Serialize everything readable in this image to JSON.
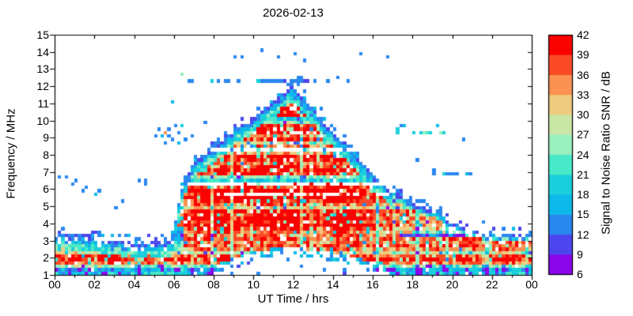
{
  "title": "2026-02-13",
  "axes": {
    "x_label": "UT Time / hrs",
    "y_label": "Frequency / MHz",
    "x_ticks": [
      "00",
      "02",
      "04",
      "06",
      "08",
      "10",
      "12",
      "14",
      "16",
      "18",
      "20",
      "22",
      "00"
    ],
    "x_tick_hours": [
      0,
      2,
      4,
      6,
      8,
      10,
      12,
      14,
      16,
      18,
      20,
      22,
      24
    ],
    "y_ticks": [
      15,
      14,
      13,
      12,
      11,
      10,
      9,
      8,
      7,
      6,
      5,
      4,
      3,
      2,
      1
    ]
  },
  "colorbar": {
    "label": "Signal to Noise Ratio SNR / dB",
    "tick_values": [
      6,
      9,
      12,
      15,
      18,
      21,
      24,
      27,
      30,
      33,
      36,
      39,
      42
    ],
    "colors_bottom_to_top": [
      "#8a06e9",
      "#4d46ee",
      "#2a87f0",
      "#0cb9e8",
      "#1acfdb",
      "#48e9c8",
      "#97f0be",
      "#c8e7a6",
      "#efcb7f",
      "#fb9251",
      "#fb4b26",
      "#fa0200"
    ]
  },
  "chart_data": {
    "type": "heatmap",
    "title": "2026-02-13",
    "xlabel": "UT Time / hrs",
    "ylabel": "Frequency / MHz",
    "zlabel": "Signal to Noise Ratio SNR / dB",
    "x_range": [
      0,
      24
    ],
    "y_range": [
      1,
      15
    ],
    "z_range": [
      6,
      42
    ],
    "z_step": 3,
    "grid": {
      "nt": 144,
      "nf": 70
    },
    "seed": 20260213,
    "envelope_foF2_MHz": {
      "hours": [
        0,
        1,
        2,
        3,
        4,
        4.8,
        5.4,
        5.9,
        6.1,
        6.5,
        7,
        7.5,
        8,
        9,
        10,
        10.8,
        11.3,
        11.8,
        12.2,
        12.7,
        13,
        13.5,
        14,
        14.5,
        15,
        16,
        17,
        18,
        19,
        20,
        21,
        22,
        23,
        24
      ],
      "mhz": [
        3.35,
        3.3,
        3.2,
        3.05,
        2.95,
        2.9,
        2.8,
        2.95,
        4.2,
        6.3,
        7.3,
        7.9,
        8.5,
        9.6,
        10.5,
        11.1,
        11.5,
        11.9,
        11.5,
        11.0,
        10.5,
        9.9,
        9.3,
        8.7,
        8.0,
        6.9,
        5.8,
        5.0,
        4.3,
        3.85,
        3.55,
        3.4,
        3.3,
        3.3
      ]
    },
    "absorption_fmin_MHz": {
      "hours": [
        0,
        7.5,
        8,
        9,
        10,
        11,
        12,
        13,
        14,
        15,
        16,
        17,
        17.5,
        24
      ],
      "mhz": [
        1,
        1,
        1.1,
        1.5,
        1.9,
        2.1,
        2.15,
        2.0,
        1.85,
        1.6,
        1.3,
        1.05,
        1,
        1
      ]
    },
    "low_band_profile": [
      {
        "f_range": [
          1.0,
          1.35
        ],
        "snr": 18
      },
      {
        "f_range": [
          1.35,
          1.7
        ],
        "snr": 24
      },
      {
        "f_range": [
          1.7,
          2.25
        ],
        "snr": 38
      },
      {
        "f_range": [
          2.25,
          2.7
        ],
        "snr": 28
      },
      {
        "f_range": [
          2.7,
          3.05
        ],
        "snr": 20
      },
      {
        "f_range": [
          3.05,
          3.45
        ],
        "snr": 14
      }
    ],
    "notch_rows": [
      {
        "f": 6.3,
        "t0": 6.6,
        "t1": 24,
        "gap_prob": 0.88
      },
      {
        "f": 8.3,
        "t0": 7.4,
        "t1": 15.2,
        "gap_prob": 0.8
      },
      {
        "f": 5.7,
        "t0": 8.0,
        "t1": 16.8,
        "gap_prob": 0.55
      },
      {
        "f": 9.3,
        "t0": 9.8,
        "t1": 13.2,
        "gap_prob": 0.5
      }
    ],
    "cyan_rows": [
      {
        "f": 10.1,
        "t0": 9.4,
        "t1": 13.2
      },
      {
        "f": 6.5,
        "t0": 6.8,
        "t1": 24
      }
    ],
    "dotted_lines": [
      {
        "f": 12.3,
        "t0": 6.7,
        "t1": 13.6,
        "prob": 0.4,
        "dense": [
          10.2,
          11.5
        ],
        "dense_prob": 0.85,
        "snr": 13
      },
      {
        "f": 9.3,
        "t0": 17.2,
        "t1": 19.9,
        "prob": 0.45,
        "snr": 20
      },
      {
        "f": 9.7,
        "t0": 17.4,
        "t1": 19.6,
        "prob": 0.2,
        "snr": 16
      },
      {
        "f": 6.9,
        "t0": 18.6,
        "t1": 21.3,
        "prob": 0.5,
        "snr": 13
      }
    ],
    "scatter_dots": [
      [
        9.0,
        13.7,
        13
      ],
      [
        9.45,
        13.65,
        13
      ],
      [
        11.2,
        13.7,
        13
      ],
      [
        12.1,
        13.9,
        13
      ],
      [
        10.4,
        14.05,
        13
      ],
      [
        12.6,
        13.5,
        13
      ],
      [
        13.7,
        12.25,
        13
      ],
      [
        14.2,
        12.4,
        13
      ],
      [
        14.75,
        12.3,
        13
      ],
      [
        15.4,
        13.8,
        13
      ],
      [
        16.7,
        13.75,
        13
      ],
      [
        5.1,
        9.0,
        14
      ],
      [
        5.3,
        9.4,
        13
      ],
      [
        5.45,
        9.15,
        17
      ],
      [
        5.6,
        9.3,
        33
      ],
      [
        5.7,
        9.0,
        13
      ],
      [
        5.8,
        9.5,
        14
      ],
      [
        5.9,
        8.85,
        13
      ],
      [
        6.1,
        9.7,
        14
      ],
      [
        6.3,
        9.3,
        13
      ],
      [
        6.45,
        9.75,
        20
      ],
      [
        6.6,
        8.9,
        13
      ],
      [
        6.9,
        9.1,
        13
      ],
      [
        6.2,
        8.7,
        17
      ],
      [
        5.5,
        8.65,
        13
      ],
      [
        7.5,
        9.9,
        13
      ],
      [
        6.45,
        12.7,
        24
      ],
      [
        5.9,
        11.1,
        17
      ],
      [
        0.25,
        6.7,
        13
      ],
      [
        0.5,
        6.8,
        13
      ],
      [
        0.9,
        6.3,
        13
      ],
      [
        1.1,
        6.5,
        14
      ],
      [
        1.35,
        5.9,
        13
      ],
      [
        1.6,
        6.1,
        13
      ],
      [
        2.0,
        5.6,
        17
      ],
      [
        2.3,
        5.9,
        13
      ],
      [
        3.0,
        4.95,
        13
      ],
      [
        3.4,
        5.2,
        13
      ],
      [
        4.3,
        6.5,
        13
      ],
      [
        4.5,
        6.2,
        13
      ],
      [
        4.65,
        6.6,
        14
      ],
      [
        12.2,
        12.0,
        13
      ],
      [
        12.5,
        11.6,
        13
      ],
      [
        12.9,
        9.6,
        13
      ],
      [
        13.2,
        8.9,
        13
      ],
      [
        13.4,
        10.6,
        13
      ],
      [
        13.6,
        8.3,
        13
      ],
      [
        14.0,
        7.9,
        13
      ],
      [
        14.4,
        8.6,
        13
      ],
      [
        14.9,
        7.6,
        13
      ],
      [
        15.2,
        8.0,
        13
      ],
      [
        15.6,
        7.2,
        13
      ],
      [
        15.9,
        6.9,
        13
      ],
      [
        16.3,
        6.5,
        13
      ],
      [
        12.4,
        10.9,
        13
      ],
      [
        17.0,
        6.1,
        13
      ],
      [
        18.2,
        7.7,
        13
      ],
      [
        20.5,
        8.8,
        13
      ],
      [
        21.6,
        4.1,
        13
      ]
    ]
  }
}
